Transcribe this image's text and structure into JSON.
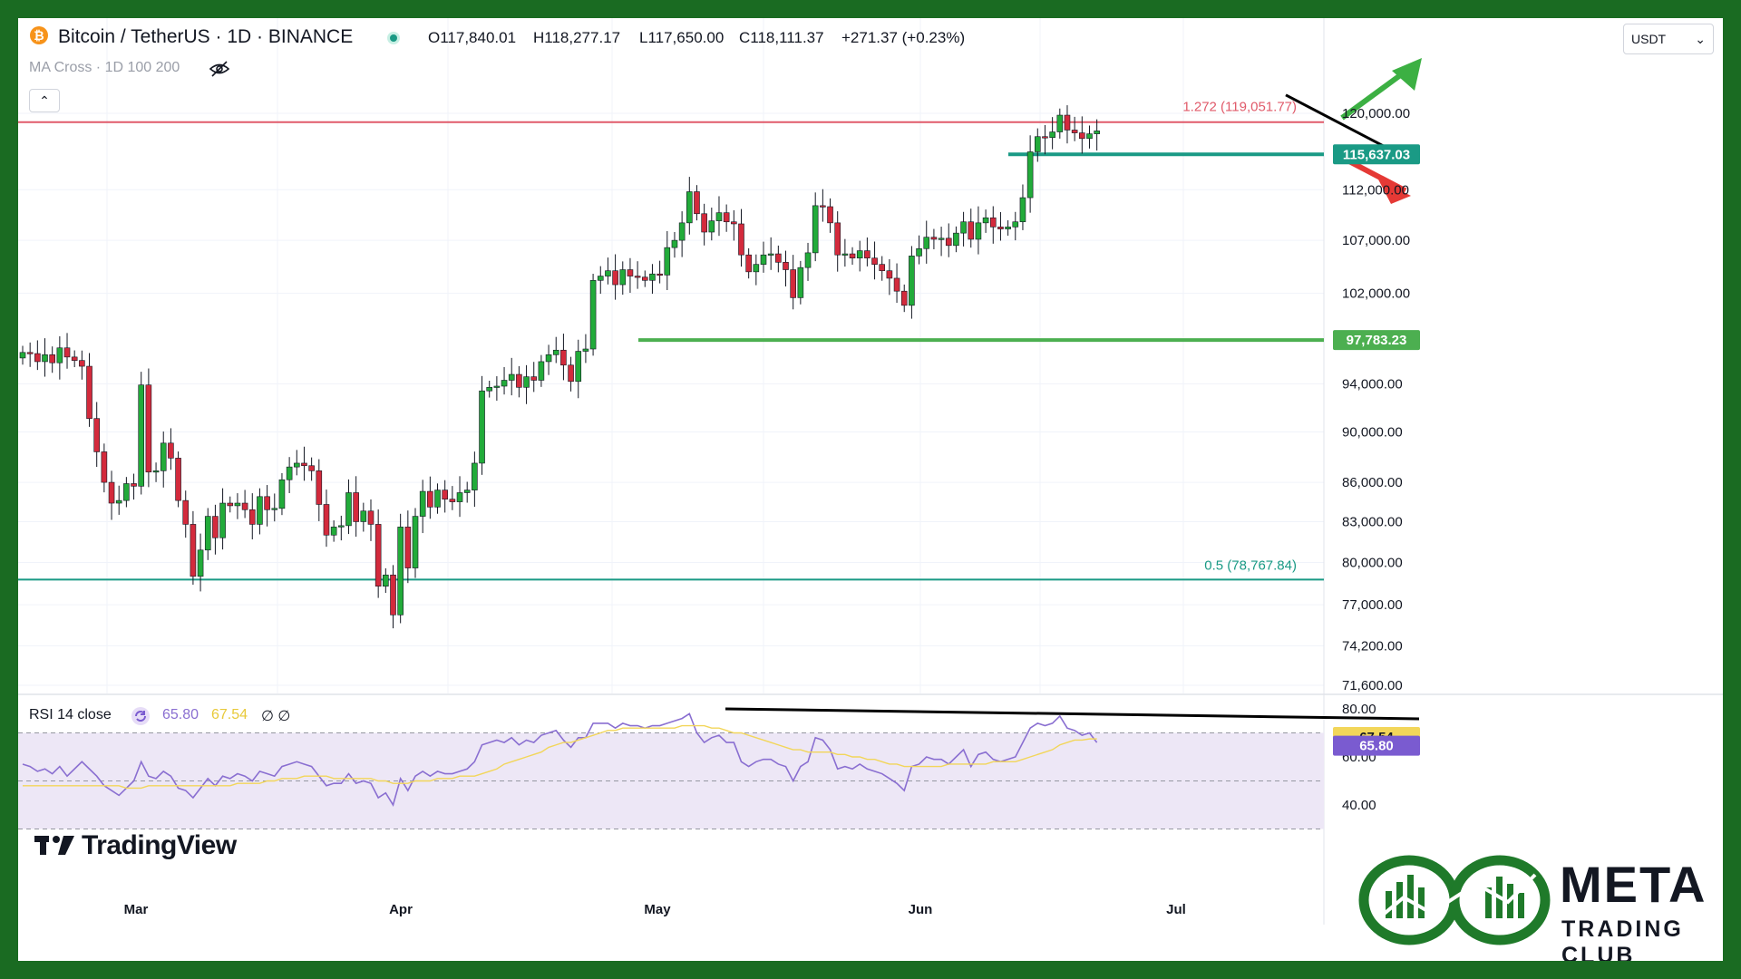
{
  "header": {
    "symbol": "Bitcoin / TetherUS · 1D · BINANCE",
    "open": "O117,840.01",
    "high": "H118,277.17",
    "low": "L117,650.00",
    "close": "C118,111.37",
    "change": "+271.37 (+0.23%)",
    "indicator": "MA Cross · 1D 100 200",
    "currency": "USDT",
    "collapse": "⌃"
  },
  "rsi_header": {
    "label": "RSI 14 close",
    "rsi_value": "65.80",
    "ma_value": "67.54",
    "extra": "∅ ∅"
  },
  "branding": {
    "tradingview": "TradingView",
    "meta_title": "META",
    "meta_sub": "TRADING CLUB"
  },
  "colors": {
    "up": "#22ab3a",
    "down": "#d32a3c",
    "fib_red": "#e05a6a",
    "teal": "#1a9a85",
    "green_line": "#4caf50",
    "rsi_line": "#8a6fd1",
    "rsi_ma": "#f2d65a",
    "rsi_bg": "#ede7f6"
  },
  "chart_data": [
    {
      "type": "candlestick",
      "title": "Bitcoin / TetherUS · 1D · BINANCE",
      "x_months": [
        "Mar",
        "Apr",
        "May",
        "Jun",
        "Jul"
      ],
      "y_ticks": [
        "120,000.00",
        "112,000.00",
        "107,000.00",
        "102,000.00",
        "94,000.00",
        "90,000.00",
        "86,000.00",
        "83,000.00",
        "80,000.00",
        "77,000.00",
        "74,200.00",
        "71,600.00"
      ],
      "y_tick_values": [
        120000,
        112000,
        107000,
        102000,
        94000,
        90000,
        86000,
        83000,
        80000,
        77000,
        74200,
        71600
      ],
      "ylim": [
        71600,
        120000
      ],
      "scale": "log",
      "levels": [
        {
          "label": "1.272 (119,051.77)",
          "value": 119051.77,
          "color": "#e05a6a"
        },
        {
          "label": "0.5 (78,767.84)",
          "value": 78767.84,
          "color": "#1a9a85"
        },
        {
          "label": "115,637.03",
          "value": 115637.03,
          "color": "#1a9a85",
          "badge": true
        },
        {
          "label": "97,783.23",
          "value": 97783.23,
          "color": "#4caf50",
          "badge": true
        }
      ],
      "closes": [
        96700,
        96600,
        95900,
        96500,
        95800,
        97100,
        96300,
        96000,
        95500,
        91100,
        88400,
        86000,
        84400,
        84600,
        85900,
        85700,
        93900,
        86800,
        86900,
        89100,
        87900,
        84600,
        82800,
        79000,
        80900,
        83400,
        81800,
        84400,
        84200,
        84400,
        83900,
        82800,
        84900,
        83900,
        84000,
        86200,
        87200,
        87500,
        87300,
        86900,
        84300,
        82000,
        82600,
        82700,
        85200,
        83000,
        83800,
        82800,
        78300,
        79100,
        76300,
        82600,
        79600,
        83400,
        85300,
        84100,
        85400,
        84700,
        84500,
        85200,
        85400,
        87500,
        93400,
        93700,
        93800,
        94300,
        94800,
        93700,
        94600,
        94300,
        95900,
        96500,
        96900,
        95600,
        94200,
        96800,
        97000,
        103200,
        103600,
        104100,
        102800,
        104200,
        103600,
        103500,
        103200,
        103800,
        103700,
        106300,
        107000,
        108700,
        111800,
        109600,
        107800,
        108900,
        109700,
        108800,
        108600,
        105600,
        104000,
        104700,
        105600,
        105700,
        104900,
        104200,
        101600,
        104400,
        105800,
        110400,
        110300,
        108700,
        105600,
        105700,
        105300,
        106000,
        105300,
        104700,
        104100,
        103400,
        102200,
        100900,
        105500,
        106200,
        107300,
        107100,
        107200,
        106500,
        107700,
        108800,
        107100,
        108700,
        109200,
        108300,
        108100,
        108300,
        108800,
        111200,
        115900,
        117500,
        117400,
        118000,
        119800,
        118200,
        117900,
        117300,
        117800,
        118111
      ]
    },
    {
      "type": "line",
      "title": "RSI 14 close",
      "y_ticks": [
        "80.00",
        "60.00",
        "40.00"
      ],
      "y_tick_values": [
        80,
        60,
        40
      ],
      "ylim": [
        30,
        83
      ],
      "badges": [
        {
          "label": "67.54",
          "value": 67.54
        },
        {
          "label": "65.80",
          "value": 65.8
        }
      ],
      "series": [
        {
          "values": [
            57,
            56,
            54,
            55,
            53,
            56,
            52,
            55,
            58,
            55,
            52,
            48,
            46,
            44,
            47,
            50,
            58,
            52,
            51,
            54,
            52,
            47,
            46,
            43,
            47,
            51,
            48,
            52,
            51,
            53,
            52,
            50,
            54,
            53,
            52,
            56,
            57,
            58,
            57,
            56,
            52,
            48,
            49,
            49,
            53,
            49,
            50,
            49,
            43,
            45,
            40,
            51,
            46,
            52,
            54,
            52,
            54,
            53,
            53,
            54,
            55,
            58,
            65,
            66,
            67,
            66,
            68,
            65,
            67,
            66,
            69,
            70,
            71,
            67,
            64,
            68,
            68,
            74,
            74,
            74,
            72,
            74,
            73,
            73,
            72,
            73,
            73,
            74,
            75,
            76,
            78,
            70,
            66,
            68,
            69,
            66,
            66,
            58,
            56,
            58,
            59,
            59,
            57,
            56,
            50,
            56,
            58,
            68,
            67,
            63,
            55,
            56,
            55,
            57,
            55,
            54,
            53,
            51,
            49,
            46,
            56,
            57,
            60,
            59,
            59,
            57,
            60,
            63,
            56,
            61,
            62,
            59,
            58,
            59,
            60,
            66,
            72,
            74,
            73,
            74,
            77,
            72,
            71,
            69,
            70,
            66
          ]
        },
        {
          "values": [
            48,
            48,
            48,
            48,
            48,
            48,
            48,
            48,
            48,
            48,
            48,
            48,
            48,
            48,
            47,
            47,
            47,
            48,
            48,
            48,
            48,
            48,
            48,
            48,
            48,
            48,
            48,
            48,
            48,
            49,
            49,
            49,
            49,
            50,
            50,
            51,
            51,
            51,
            52,
            52,
            52,
            52,
            51,
            51,
            51,
            51,
            51,
            51,
            50,
            50,
            49,
            49,
            49,
            50,
            50,
            50,
            51,
            51,
            51,
            52,
            52,
            52,
            53,
            54,
            55,
            57,
            58,
            59,
            60,
            61,
            62,
            64,
            65,
            66,
            66,
            67,
            68,
            69,
            70,
            71,
            71,
            72,
            72,
            72,
            72,
            72,
            72,
            72,
            72,
            73,
            73,
            73,
            73,
            72,
            72,
            71,
            70,
            70,
            69,
            68,
            67,
            66,
            65,
            64,
            63,
            63,
            62,
            62,
            62,
            62,
            61,
            61,
            60,
            60,
            59,
            59,
            58,
            57,
            57,
            56,
            56,
            56,
            56,
            56,
            56,
            57,
            57,
            57,
            57,
            57,
            57,
            58,
            58,
            58,
            58,
            59,
            60,
            61,
            62,
            63,
            65,
            66,
            67,
            67,
            67.5,
            67.5
          ]
        }
      ]
    }
  ]
}
